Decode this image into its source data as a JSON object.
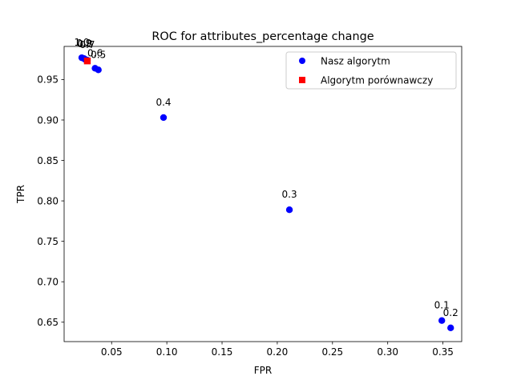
{
  "chart_data": {
    "type": "scatter",
    "title": "ROC for attributes_percentage change",
    "xlabel": "FPR",
    "ylabel": "TPR",
    "xlim": [
      0.007,
      0.367
    ],
    "ylim": [
      0.626,
      0.991
    ],
    "x_ticks": [
      0.05,
      0.1,
      0.15,
      0.2,
      0.25,
      0.3,
      0.35
    ],
    "x_tick_labels": [
      "0.05",
      "0.10",
      "0.15",
      "0.20",
      "0.25",
      "0.30",
      "0.35"
    ],
    "y_ticks": [
      0.65,
      0.7,
      0.75,
      0.8,
      0.85,
      0.9,
      0.95
    ],
    "y_tick_labels": [
      "0.65",
      "0.70",
      "0.75",
      "0.80",
      "0.85",
      "0.90",
      "0.95"
    ],
    "grid": false,
    "legend_position": "upper-right",
    "series": [
      {
        "name": "Nasz algorytm",
        "marker": "circle",
        "color": "#0000ff",
        "points": [
          {
            "x": 0.349,
            "y": 0.652,
            "label": "0.1"
          },
          {
            "x": 0.357,
            "y": 0.643,
            "label": "0.2"
          },
          {
            "x": 0.211,
            "y": 0.789,
            "label": "0.3"
          },
          {
            "x": 0.097,
            "y": 0.903,
            "label": "0.4"
          },
          {
            "x": 0.038,
            "y": 0.962,
            "label": "0.5"
          },
          {
            "x": 0.035,
            "y": 0.964,
            "label": "0.6"
          },
          {
            "x": 0.028,
            "y": 0.974,
            "label": "0.7"
          },
          {
            "x": 0.026,
            "y": 0.975,
            "label": "0.8"
          },
          {
            "x": 0.025,
            "y": 0.976,
            "label": "0.9"
          },
          {
            "x": 0.023,
            "y": 0.977,
            "label": "1.0"
          }
        ]
      },
      {
        "name": "Algorytm porównawczy",
        "marker": "square",
        "color": "#ff0000",
        "points": [
          {
            "x": 0.028,
            "y": 0.973
          }
        ]
      }
    ]
  }
}
